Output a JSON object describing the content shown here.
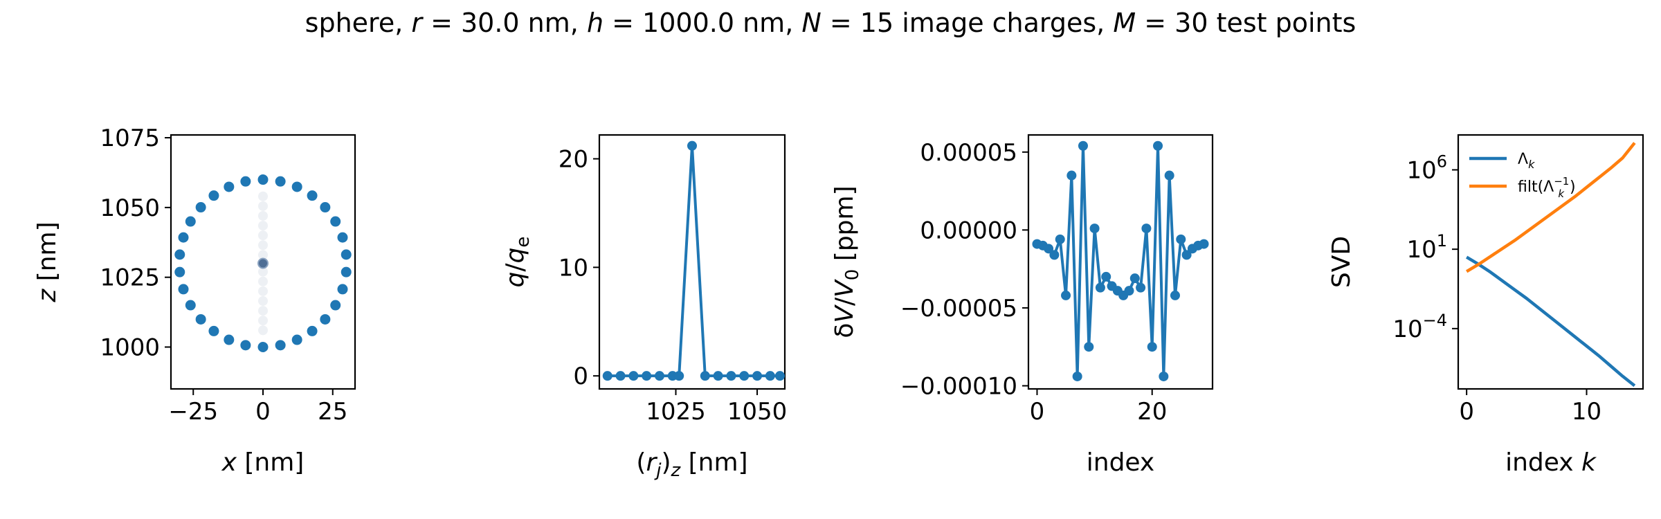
{
  "title": "sphere, r = 30.0 nm, h = 1000.0 nm, N = 15 image charges, M = 30 test points",
  "colors": {
    "blue": "#1f77b4",
    "orange": "#ff7f0e"
  },
  "chart_data": [
    {
      "type": "scatter",
      "xlabel": "x [nm]",
      "ylabel": "z [nm]",
      "xlim": [
        -33,
        33
      ],
      "ylim": [
        985,
        1076
      ],
      "xticks": [
        -25,
        0,
        25
      ],
      "yticks": [
        1000,
        1025,
        1050,
        1075
      ],
      "xtick_labels": [
        "−25",
        "0",
        "25"
      ],
      "ytick_labels": [
        "1000",
        "1025",
        "1050",
        "1075"
      ],
      "test_points": {
        "center": [
          0,
          1030
        ],
        "radius": 30,
        "count": 30
      },
      "image_charges": {
        "x": [
          0,
          0,
          0,
          0,
          0,
          0,
          0,
          0,
          0,
          0,
          0,
          0,
          0,
          0,
          0
        ],
        "z": [
          1006,
          1009.5,
          1013,
          1016.5,
          1020,
          1023.5,
          1027,
          1030,
          1033,
          1036.5,
          1040,
          1043.5,
          1047,
          1050.5,
          1054
        ]
      },
      "center_point": [
        0,
        1030
      ]
    },
    {
      "type": "line",
      "xlabel": "(r_j)_z [nm]",
      "ylabel": "q/q_e",
      "xlim": [
        1001.5,
        1058.5
      ],
      "ylim": [
        -1.2,
        22.2
      ],
      "xticks": [
        1025,
        1050
      ],
      "yticks": [
        0,
        10,
        20
      ],
      "xtick_labels": [
        "1025",
        "1050"
      ],
      "ytick_labels": [
        "0",
        "10",
        "20"
      ],
      "x": [
        1004,
        1008,
        1012,
        1016,
        1020,
        1024,
        1026,
        1030,
        1034,
        1038,
        1042,
        1046,
        1050,
        1054,
        1057
      ],
      "values": [
        0,
        0,
        0,
        0,
        0,
        0,
        0,
        21.2,
        0,
        0,
        0,
        0,
        0,
        0,
        0
      ]
    },
    {
      "type": "line",
      "xlabel": "index",
      "ylabel": "δV/V₀ [ppm]",
      "xlim": [
        -1.5,
        30.5
      ],
      "ylim": [
        -0.000102,
        6.1e-05
      ],
      "xticks": [
        0,
        20
      ],
      "yticks": [
        5e-05,
        0.0,
        -5e-05,
        -0.0001
      ],
      "xtick_labels": [
        "0",
        "20"
      ],
      "ytick_labels": [
        "0.00005",
        "0.00000",
        "−0.00005",
        "−0.00010"
      ],
      "x": [
        0,
        1,
        2,
        3,
        4,
        5,
        6,
        7,
        8,
        9,
        10,
        11,
        12,
        13,
        14,
        15,
        16,
        17,
        18,
        19,
        20,
        21,
        22,
        23,
        24,
        25,
        26,
        27,
        28,
        29
      ],
      "values": [
        -9e-06,
        -1e-05,
        -1.2e-05,
        -1.6e-05,
        -6e-06,
        -4.2e-05,
        3.5e-05,
        -9.4e-05,
        5.4e-05,
        -7.5e-05,
        1e-06,
        -3.7e-05,
        -3e-05,
        -3.6e-05,
        -3.9e-05,
        -4.2e-05,
        -3.9e-05,
        -3.1e-05,
        -3.7e-05,
        1e-06,
        -7.5e-05,
        5.4e-05,
        -9.4e-05,
        3.5e-05,
        -4.2e-05,
        -6e-06,
        -1.6e-05,
        -1.2e-05,
        -1e-05,
        -9e-06
      ]
    },
    {
      "type": "line",
      "xlabel": "index k",
      "ylabel": "SVD",
      "yscale": "log",
      "xlim": [
        -0.7,
        14.7
      ],
      "ylim": [
        -7.8,
        8.2
      ],
      "xticks": [
        0,
        10
      ],
      "yticks": [
        6,
        1,
        -4
      ],
      "xtick_labels": [
        "0",
        "10"
      ],
      "ytick_labels": [
        "10",
        "10",
        "10"
      ],
      "ytick_exponents": [
        "6",
        "1",
        "−4"
      ],
      "x": [
        0,
        1,
        2,
        3,
        4,
        5,
        6,
        7,
        8,
        9,
        10,
        11,
        12,
        13,
        14
      ],
      "series": [
        {
          "name": "Λ_k",
          "values": [
            0.5,
            0.05,
            -0.45,
            -1.0,
            -1.55,
            -2.1,
            -2.7,
            -3.3,
            -3.9,
            -4.5,
            -5.1,
            -5.7,
            -6.35,
            -7.0,
            -7.6
          ]
        },
        {
          "name": "filt(Λ_k^{-1})",
          "values": [
            -0.4,
            0.05,
            0.55,
            1.05,
            1.55,
            2.1,
            2.65,
            3.2,
            3.75,
            4.3,
            4.9,
            5.5,
            6.1,
            6.75,
            7.7
          ]
        }
      ],
      "legend": "top-left"
    }
  ]
}
